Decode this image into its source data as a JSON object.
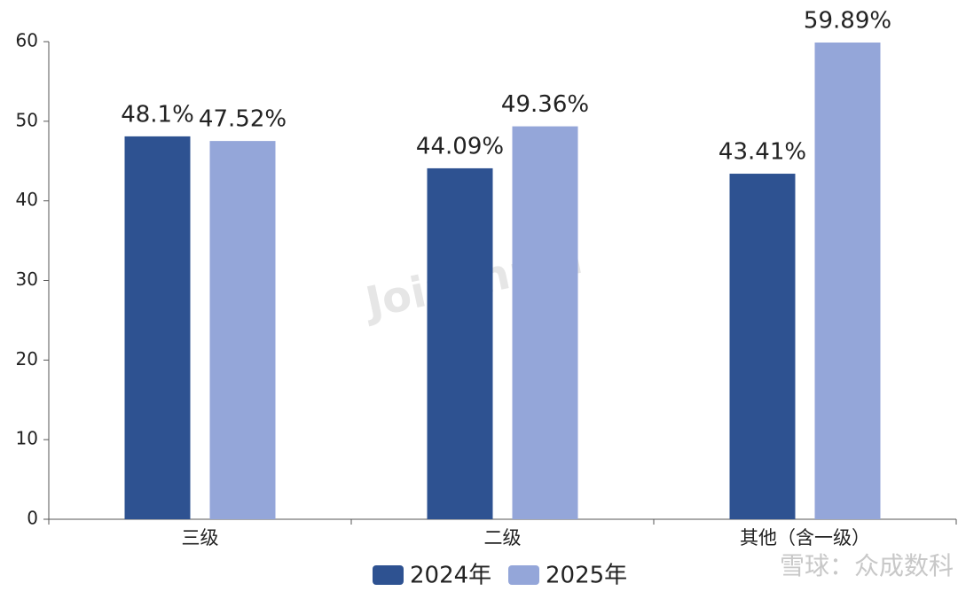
{
  "chart_data": {
    "type": "bar",
    "categories": [
      "三级",
      "二级",
      "其他（含一级）"
    ],
    "series": [
      {
        "name": "2024年",
        "color": "#2e5291",
        "values": [
          48.1,
          44.09,
          43.41
        ],
        "value_labels": [
          "48.1%",
          "44.09%",
          "43.41%"
        ]
      },
      {
        "name": "2025年",
        "color": "#94a6d9",
        "values": [
          47.52,
          49.36,
          59.89
        ],
        "value_labels": [
          "47.52%",
          "49.36%",
          "59.89%"
        ]
      }
    ],
    "ylim": [
      0,
      60
    ],
    "yticks": [
      0,
      10,
      20,
      30,
      40,
      50,
      60
    ],
    "grid": false,
    "legend": "bottom",
    "watermark": "Joinchain",
    "source": "雪球：众成数科"
  }
}
